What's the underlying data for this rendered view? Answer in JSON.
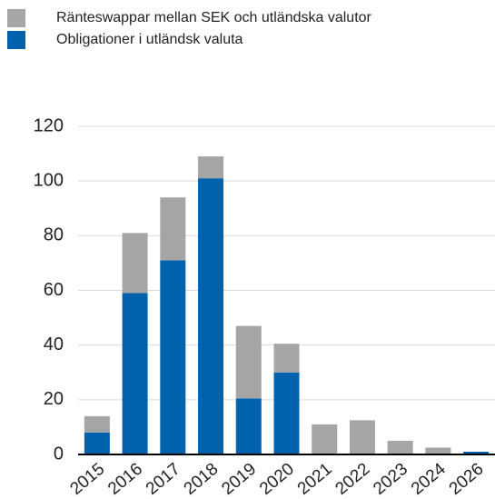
{
  "chart_data": {
    "type": "stacked_bar",
    "categories": [
      "2015",
      "2016",
      "2017",
      "2018",
      "2019",
      "2020",
      "2021",
      "2022",
      "2023",
      "2024",
      "2026"
    ],
    "series": [
      {
        "name": "Ränteswappar mellan SEK och utländska valutor",
        "color": "#a5a5a5",
        "values": [
          6,
          22,
          23,
          8,
          26.5,
          10.5,
          11,
          12.5,
          5,
          2.5,
          0
        ]
      },
      {
        "name": "Obligationer i utländsk valuta",
        "color": "#0062ad",
        "values": [
          8,
          59,
          71,
          101,
          20.5,
          30,
          0,
          0,
          0,
          0,
          1
        ]
      }
    ],
    "stack_order": [
      1,
      0
    ],
    "ylim": [
      0,
      120
    ],
    "yticks": [
      0,
      20,
      40,
      60,
      80,
      100,
      120
    ],
    "grid": true
  }
}
